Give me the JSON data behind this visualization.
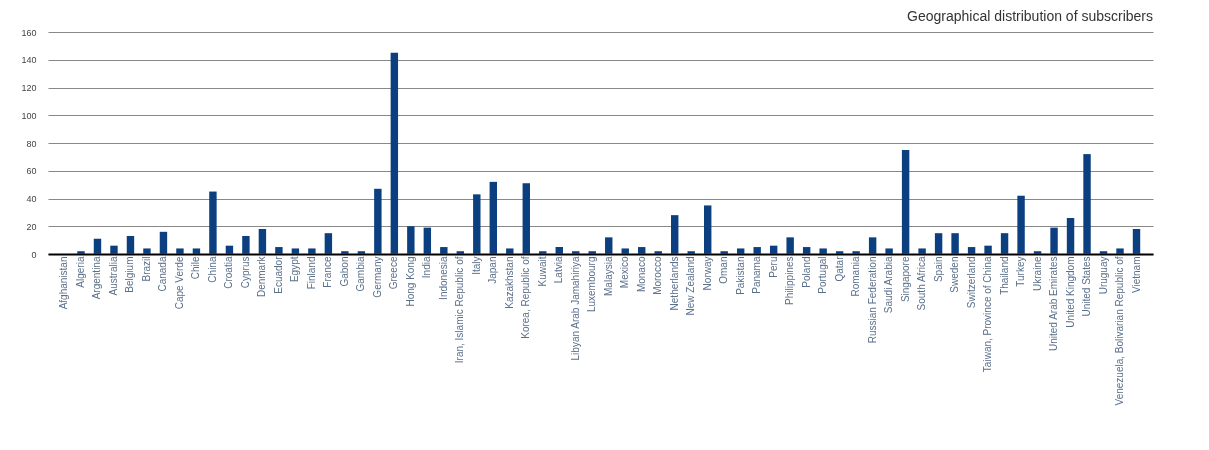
{
  "chart_data": {
    "type": "bar",
    "title": "Geographical distribution of subscribers",
    "categories": [
      "Afghanistan",
      "Algeria",
      "Argentina",
      "Australia",
      "Belgium",
      "Brazil",
      "Canada",
      "Cape Verde",
      "Chile",
      "China",
      "Croatia",
      "Cyprus",
      "Denmark",
      "Ecuador",
      "Egypt",
      "Finland",
      "France",
      "Gabon",
      "Gambia",
      "Germany",
      "Greece",
      "Hong Kong",
      "India",
      "Indonesia",
      "Iran, Islamic Republic of",
      "Italy",
      "Japan",
      "Kazakhstan",
      "Korea, Republic of",
      "Kuwait",
      "Latvia",
      "Libyan Arab Jamahiriya",
      "Luxembourg",
      "Malaysia",
      "Mexico",
      "Monaco",
      "Morocco",
      "Netherlands",
      "New Zealand",
      "Norway",
      "Oman",
      "Pakistan",
      "Panama",
      "Peru",
      "Philippines",
      "Poland",
      "Portugal",
      "Qatar",
      "Romania",
      "Russian Federation",
      "Saudi Arabia",
      "Singapore",
      "South Africa",
      "Spain",
      "Sweden",
      "Switzerland",
      "Taiwan, Province of China",
      "Thailand",
      "Turkey",
      "Ukraine",
      "United Arab Emirates",
      "United Kingdom",
      "United States",
      "Uruguay",
      "Venezuela, Bolivarian Republic of",
      "Vietnam"
    ],
    "values": [
      0,
      2,
      11,
      6,
      13,
      4,
      16,
      4,
      4,
      45,
      6,
      13,
      18,
      5,
      4,
      4,
      15,
      2,
      2,
      47,
      145,
      20,
      19,
      5,
      2,
      43,
      52,
      4,
      51,
      2,
      5,
      2,
      2,
      12,
      4,
      5,
      2,
      28,
      2,
      35,
      2,
      4,
      5,
      6,
      12,
      5,
      4,
      2,
      2,
      12,
      4,
      75,
      4,
      15,
      15,
      5,
      6,
      15,
      42,
      2,
      19,
      26,
      72,
      2,
      4,
      18
    ],
    "color": "#0b3f7f",
    "ylim": [
      0,
      160
    ],
    "yticks": [
      0,
      20,
      40,
      60,
      80,
      100,
      120,
      140,
      160
    ],
    "grid": "y"
  }
}
